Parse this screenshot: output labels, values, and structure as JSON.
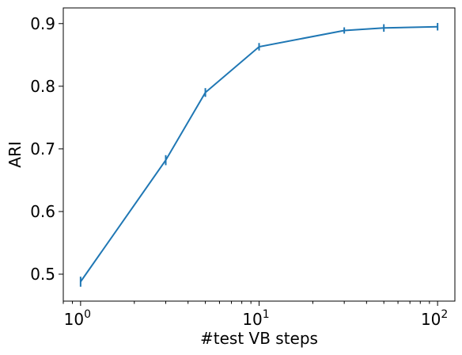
{
  "chart_data": {
    "type": "line",
    "xlabel": "#test VB steps",
    "ylabel": "ARI",
    "xscale": "log",
    "xlim": [
      0.8,
      125
    ],
    "ylim": [
      0.457,
      0.925
    ],
    "grid": false,
    "x_ticks": [
      {
        "value": 1,
        "base": "10",
        "exp": "0"
      },
      {
        "value": 10,
        "base": "10",
        "exp": "1"
      },
      {
        "value": 100,
        "base": "10",
        "exp": "2"
      }
    ],
    "y_ticks": [
      {
        "value": 0.5,
        "label": "0.5"
      },
      {
        "value": 0.6,
        "label": "0.6"
      },
      {
        "value": 0.7,
        "label": "0.7"
      },
      {
        "value": 0.8,
        "label": "0.8"
      },
      {
        "value": 0.9,
        "label": "0.9"
      }
    ],
    "series": [
      {
        "color": "#1f77b4",
        "x": [
          1,
          3,
          5,
          10,
          30,
          50,
          100
        ],
        "y": [
          0.488,
          0.682,
          0.79,
          0.863,
          0.889,
          0.893,
          0.895
        ],
        "err": [
          0.008,
          0.008,
          0.007,
          0.006,
          0.005,
          0.006,
          0.006
        ]
      }
    ]
  }
}
